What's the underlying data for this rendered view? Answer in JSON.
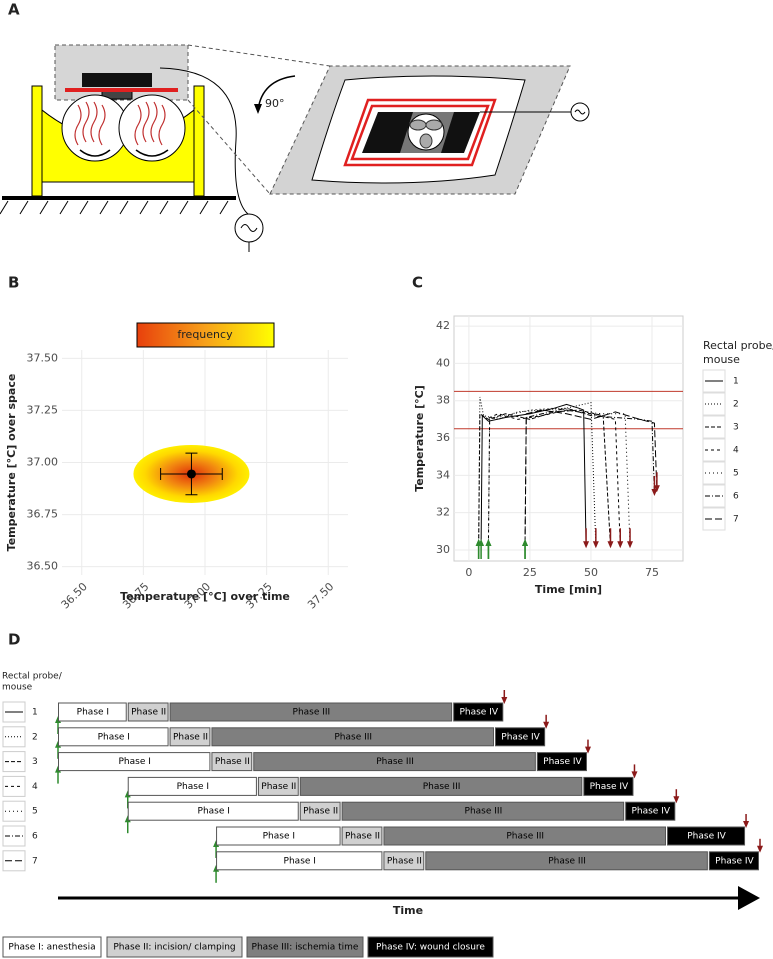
{
  "diagram": {
    "panel_label": "A",
    "angle_label": "90°"
  },
  "chart_data": [
    {
      "type": "scatter",
      "panel_label": "B",
      "legend_label": "frequency",
      "xlabel": "Temperature [°C] over time",
      "ylabel": "Temperature [°C] over space",
      "x": [
        36.945
      ],
      "values": [
        36.945
      ],
      "xerr": [
        0.125
      ],
      "yerr": [
        0.1
      ],
      "color": "#000000",
      "xlim": [
        36.42,
        37.58
      ],
      "ylim": [
        36.46,
        37.54
      ],
      "xticks": [
        {
          "value": 36.5,
          "label": "36.50"
        },
        36.75,
        {
          "value": 37,
          "label": "37.00"
        },
        37.25,
        {
          "value": 37.5,
          "label": "37.50"
        }
      ],
      "yticks": [
        {
          "value": 36.5,
          "label": "36.50"
        },
        36.75,
        {
          "value": 37,
          "label": "37.00"
        },
        37.25,
        {
          "value": 37.5,
          "label": "37.50"
        }
      ],
      "grid": true
    },
    {
      "type": "line",
      "panel_label": "C",
      "xlabel": "Time [min]",
      "ylabel": "Temperature [°C]",
      "legend_title": [
        "Rectal probe/",
        "mouse"
      ],
      "xlim": [
        -6.1,
        87.7
      ],
      "ylim": [
        29.41,
        42.54
      ],
      "xticks": [
        0,
        25,
        50,
        75
      ],
      "yticks": [
        30,
        32,
        34,
        36,
        38,
        40,
        42
      ],
      "grid": true,
      "hlines": [
        38.5,
        36.5
      ],
      "hline_color": "#c0392b",
      "start_color": "#2e8b2e",
      "end_color": "#8b1a1a",
      "series": [
        {
          "name": "1",
          "color": "#000000",
          "dash": "",
          "x": [
            5,
            5.5,
            8,
            15,
            25,
            35,
            40,
            45,
            47,
            48
          ],
          "values": [
            30.3,
            37.2,
            36.9,
            37.1,
            37.3,
            37.6,
            37.8,
            37.6,
            37.5,
            30.2
          ]
        },
        {
          "name": "2",
          "color": "#000000",
          "dash": "1,2",
          "x": [
            4,
            4.5,
            6,
            12,
            20,
            30,
            40,
            50,
            52
          ],
          "values": [
            30.3,
            38.2,
            37.2,
            37.0,
            37.4,
            37.5,
            37.6,
            37.9,
            30.2
          ]
        },
        {
          "name": "3",
          "color": "#000000",
          "dash": "4,2",
          "x": [
            4,
            4.5,
            8,
            15,
            25,
            35,
            45,
            55,
            58
          ],
          "values": [
            30.3,
            37.3,
            37.0,
            37.3,
            37.0,
            37.4,
            37.5,
            37.2,
            30.2
          ]
        },
        {
          "name": "4",
          "color": "#000000",
          "dash": "3,3",
          "x": [
            8,
            8.5,
            12,
            20,
            30,
            40,
            50,
            60,
            62
          ],
          "values": [
            30.3,
            37.1,
            37.3,
            37.0,
            37.2,
            37.5,
            37.3,
            37.0,
            30.2
          ]
        },
        {
          "name": "5",
          "color": "#000000",
          "dash": "1,3",
          "x": [
            8,
            8.5,
            15,
            25,
            35,
            45,
            55,
            64,
            66
          ],
          "values": [
            30.3,
            37.0,
            37.2,
            37.5,
            37.6,
            37.4,
            37.3,
            37.3,
            30.2
          ]
        },
        {
          "name": "6",
          "color": "#000000",
          "dash": "5,2,1,2",
          "x": [
            23,
            23.5,
            30,
            40,
            50,
            60,
            70,
            75,
            76
          ],
          "values": [
            30.3,
            37.1,
            37.3,
            37.6,
            37.2,
            37.1,
            37.0,
            36.9,
            33.0
          ]
        },
        {
          "name": "7",
          "color": "#000000",
          "dash": "7,3",
          "x": [
            23,
            23.5,
            30,
            40,
            50,
            60,
            70,
            76,
            77
          ],
          "values": [
            30.3,
            37.3,
            37.5,
            37.3,
            37.0,
            37.4,
            37.0,
            36.8,
            33.2
          ]
        }
      ]
    },
    {
      "type": "gantt",
      "panel_label": "D",
      "legend_title": [
        "Rectal probe/",
        "mouse"
      ],
      "xlabel": "Time",
      "categories": [
        "1",
        "2",
        "3",
        "4",
        "5",
        "6",
        "7"
      ],
      "starts": [
        0,
        0,
        0,
        7.5,
        7.5,
        17,
        17
      ],
      "xlim": [
        0,
        75.5
      ],
      "start_color": "#2e8b2e",
      "end_color": "#8b1a1a",
      "series": [
        {
          "name": "Phase I",
          "color": "#ffffff",
          "text_color": "#000000",
          "values": [
            7.5,
            12,
            16.5,
            14,
            18.5,
            13.5,
            18
          ]
        },
        {
          "name": "Phase II",
          "color": "#d0d0d0",
          "text_color": "#000000",
          "values": [
            4.5,
            4.5,
            4.5,
            4.5,
            4.5,
            4.5,
            4.5
          ]
        },
        {
          "name": "Phase III",
          "color": "#7f7f7f",
          "text_color": "#000000",
          "values": [
            30.5,
            30.5,
            30.5,
            30.5,
            30.5,
            30.5,
            30.5
          ]
        },
        {
          "name": "Phase IV",
          "color": "#000000",
          "text_color": "#ffffff",
          "values": [
            5.5,
            5.5,
            5.5,
            5.5,
            5.5,
            8.5,
            5.5
          ]
        }
      ],
      "legend_labels": [
        "Phase I: anesthesia",
        "Phase II: incision/ clamping",
        "Phase III: ischemia time",
        "Phase IV: wound closure"
      ]
    }
  ]
}
